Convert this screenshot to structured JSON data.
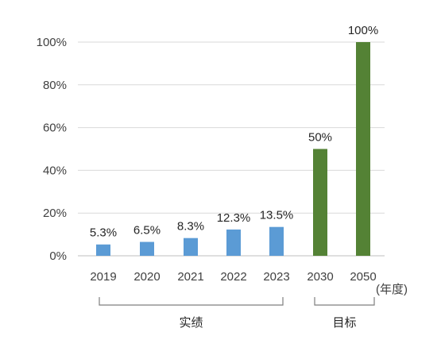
{
  "chart_data": {
    "type": "bar",
    "categories": [
      "2019",
      "2020",
      "2021",
      "2022",
      "2023",
      "2030",
      "2050"
    ],
    "values": [
      5.3,
      6.5,
      8.3,
      12.3,
      13.5,
      50,
      100
    ],
    "data_labels": [
      "5.3%",
      "6.5%",
      "8.3%",
      "12.3%",
      "13.5%",
      "50%",
      "100%"
    ],
    "ylim": [
      0,
      100
    ],
    "yticks": [
      0,
      20,
      40,
      60,
      80,
      100
    ],
    "ytick_labels": [
      "0%",
      "20%",
      "40%",
      "60%",
      "80%",
      "100%"
    ],
    "grid": true,
    "x_unit_label": "(年度)",
    "groups": [
      {
        "label": "实绩",
        "from": 0,
        "to": 4,
        "color": "#5b9bd5"
      },
      {
        "label": "目标",
        "from": 5,
        "to": 6,
        "color": "#548235"
      }
    ]
  }
}
